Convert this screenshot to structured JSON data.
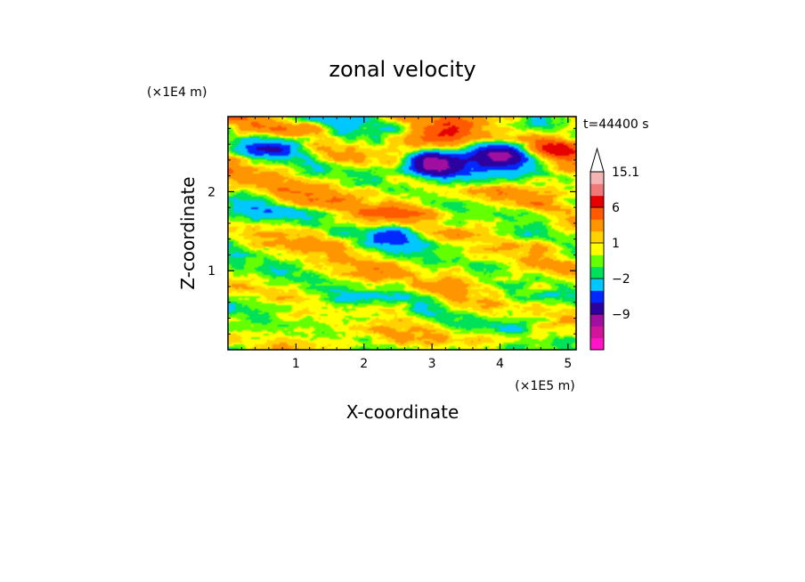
{
  "chart_data": {
    "type": "heatmap",
    "title": "zonal velocity",
    "xlabel": "X-coordinate",
    "ylabel": "Z-coordinate",
    "x_scale_label": "(×1E5 m)",
    "y_scale_label": "(×1E4 m)",
    "time_label": "t=44400 s",
    "xlim": [
      0,
      5.12
    ],
    "ylim": [
      0,
      2.95
    ],
    "x_ticks": [
      1,
      2,
      3,
      4,
      5
    ],
    "y_ticks": [
      1,
      2
    ],
    "x_tick_labels": [
      "1",
      "2",
      "3",
      "4",
      "5"
    ],
    "y_tick_labels": [
      "1",
      "2"
    ],
    "colorbar_labels": [
      {
        "label": "15.1",
        "level": 15.1
      },
      {
        "label": "6",
        "level": 6
      },
      {
        "label": "1",
        "level": 1
      },
      {
        "label": "−2",
        "level": -2
      },
      {
        "label": "−9",
        "level": -9
      }
    ],
    "colorbar_levels": [
      -15,
      -12,
      -9,
      -6,
      -4,
      -2,
      -1,
      0,
      1,
      2,
      4,
      6,
      9,
      12,
      15.1
    ],
    "colorbar_colors": [
      "#ff14c8",
      "#d2149b",
      "#a00fa0",
      "#2d00a0",
      "#0028ff",
      "#00c8ff",
      "#00e15a",
      "#64ff00",
      "#ffff00",
      "#ffd200",
      "#ff9600",
      "#ff5a00",
      "#e60000",
      "#f07878",
      "#f5b4b4"
    ],
    "field_features": [
      {
        "x": 3.0,
        "z": 2.35,
        "value": -12
      },
      {
        "x": 4.05,
        "z": 2.48,
        "value": -10
      },
      {
        "x": 3.4,
        "z": 2.18,
        "value": -4
      },
      {
        "x": 0.75,
        "z": 2.58,
        "value": -6
      },
      {
        "x": 2.45,
        "z": 1.45,
        "value": -4
      },
      {
        "x": 0.35,
        "z": 1.75,
        "value": -3
      },
      {
        "x": 2.95,
        "z": 2.65,
        "value": 6
      },
      {
        "x": 4.85,
        "z": 2.55,
        "value": 4
      },
      {
        "x": 2.6,
        "z": 1.75,
        "value": 2
      },
      {
        "x": 1.5,
        "z": 2.1,
        "value": 2
      },
      {
        "x": 3.8,
        "z": 1.7,
        "value": 1
      },
      {
        "x": 3.3,
        "z": 1.1,
        "value": 0.5
      },
      {
        "x": 4.4,
        "z": 1.0,
        "value": 0.5
      },
      {
        "x": 3.6,
        "z": 0.3,
        "value": -1
      },
      {
        "x": 4.6,
        "z": 0.45,
        "value": -1
      },
      {
        "x": 1.6,
        "z": 0.6,
        "value": -1
      },
      {
        "x": 0.5,
        "z": 0.9,
        "value": -2
      },
      {
        "x": 2.2,
        "z": 2.55,
        "value": -2
      },
      {
        "x": 1.8,
        "z": 2.8,
        "value": -2
      }
    ]
  }
}
